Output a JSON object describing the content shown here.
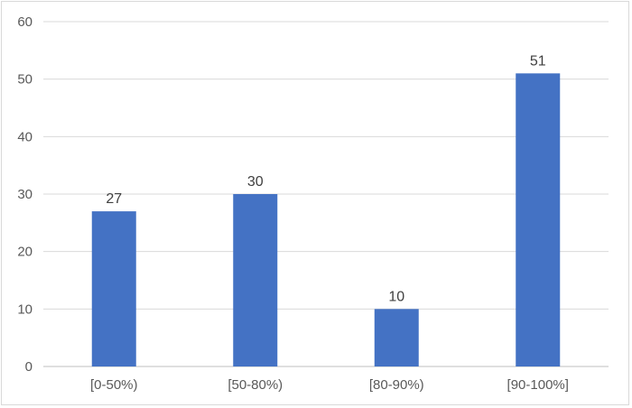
{
  "chart_data": {
    "type": "bar",
    "categories": [
      "[0-50%)",
      "[50-80%)",
      "[80-90%)",
      "[90-100%]"
    ],
    "values": [
      27,
      30,
      10,
      51
    ],
    "data_labels": [
      "27",
      "30",
      "10",
      "51"
    ],
    "title": "",
    "xlabel": "",
    "ylabel": "",
    "ylim": [
      0,
      60
    ],
    "yticks": [
      0,
      10,
      20,
      30,
      40,
      50,
      60
    ],
    "ytick_labels": [
      "0",
      "10",
      "20",
      "30",
      "40",
      "50",
      "60"
    ],
    "grid": true,
    "legend": "none",
    "bar_color": "#4472C4",
    "grid_color": "#d9d9d9"
  }
}
